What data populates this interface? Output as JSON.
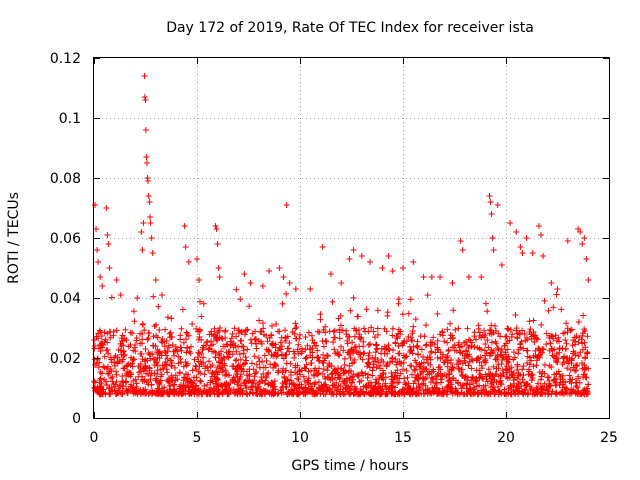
{
  "chart_data": {
    "type": "scatter",
    "title": "Day 172 of 2019, Rate Of TEC Index for receiver ista",
    "xlabel": "GPS time / hours",
    "ylabel": "ROTI / TECUs",
    "xlim": [
      0,
      25
    ],
    "ylim": [
      0,
      0.12
    ],
    "x_ticks": [
      0,
      5,
      10,
      15,
      20,
      25
    ],
    "x_tick_labels": [
      "0",
      "5",
      "10",
      "15",
      "20",
      "25"
    ],
    "y_ticks": [
      0,
      0.02,
      0.04,
      0.06,
      0.08,
      0.1,
      0.12
    ],
    "y_tick_labels": [
      "0",
      "0.02",
      "0.04",
      "0.06",
      "0.08",
      "0.1",
      "0.12"
    ],
    "grid": true,
    "marker": "+",
    "color": "#ff0000",
    "series": [
      {
        "name": "ROTI",
        "points": [
          [
            0.05,
            0.071
          ],
          [
            0.1,
            0.063
          ],
          [
            0.15,
            0.056
          ],
          [
            0.2,
            0.052
          ],
          [
            0.3,
            0.047
          ],
          [
            0.4,
            0.044
          ],
          [
            0.6,
            0.07
          ],
          [
            0.65,
            0.061
          ],
          [
            0.7,
            0.058
          ],
          [
            0.75,
            0.05
          ],
          [
            1.1,
            0.046
          ],
          [
            1.3,
            0.041
          ],
          [
            2.1,
            0.04
          ],
          [
            2.3,
            0.062
          ],
          [
            2.35,
            0.056
          ],
          [
            2.4,
            0.065
          ],
          [
            2.45,
            0.114
          ],
          [
            2.47,
            0.107
          ],
          [
            2.5,
            0.106
          ],
          [
            2.52,
            0.096
          ],
          [
            2.55,
            0.087
          ],
          [
            2.57,
            0.085
          ],
          [
            2.6,
            0.08
          ],
          [
            2.62,
            0.079
          ],
          [
            2.65,
            0.074
          ],
          [
            2.7,
            0.072
          ],
          [
            2.72,
            0.067
          ],
          [
            2.75,
            0.065
          ],
          [
            2.8,
            0.06
          ],
          [
            2.85,
            0.055
          ],
          [
            3.0,
            0.046
          ],
          [
            3.3,
            0.041
          ],
          [
            4.4,
            0.064
          ],
          [
            4.45,
            0.057
          ],
          [
            4.6,
            0.052
          ],
          [
            5.0,
            0.053
          ],
          [
            5.1,
            0.046
          ],
          [
            5.9,
            0.064
          ],
          [
            5.95,
            0.063
          ],
          [
            6.0,
            0.058
          ],
          [
            6.05,
            0.05
          ],
          [
            6.1,
            0.047
          ],
          [
            7.3,
            0.048
          ],
          [
            7.6,
            0.045
          ],
          [
            8.2,
            0.044
          ],
          [
            8.5,
            0.049
          ],
          [
            9.0,
            0.05
          ],
          [
            9.2,
            0.047
          ],
          [
            9.35,
            0.071
          ],
          [
            9.5,
            0.045
          ],
          [
            9.8,
            0.043
          ],
          [
            10.5,
            0.043
          ],
          [
            11.1,
            0.057
          ],
          [
            11.5,
            0.048
          ],
          [
            12.0,
            0.045
          ],
          [
            12.4,
            0.053
          ],
          [
            12.6,
            0.056
          ],
          [
            13.0,
            0.054
          ],
          [
            13.4,
            0.052
          ],
          [
            14.0,
            0.05
          ],
          [
            14.3,
            0.054
          ],
          [
            14.5,
            0.049
          ],
          [
            15.0,
            0.05
          ],
          [
            15.5,
            0.052
          ],
          [
            16.0,
            0.047
          ],
          [
            16.4,
            0.047
          ],
          [
            16.8,
            0.047
          ],
          [
            17.4,
            0.045
          ],
          [
            17.8,
            0.059
          ],
          [
            17.9,
            0.056
          ],
          [
            18.2,
            0.047
          ],
          [
            18.8,
            0.047
          ],
          [
            19.2,
            0.074
          ],
          [
            19.25,
            0.072
          ],
          [
            19.3,
            0.068
          ],
          [
            19.35,
            0.06
          ],
          [
            19.4,
            0.056
          ],
          [
            19.6,
            0.071
          ],
          [
            19.8,
            0.051
          ],
          [
            20.2,
            0.065
          ],
          [
            20.5,
            0.062
          ],
          [
            20.7,
            0.057
          ],
          [
            20.8,
            0.055
          ],
          [
            21.0,
            0.06
          ],
          [
            21.3,
            0.055
          ],
          [
            21.6,
            0.064
          ],
          [
            21.7,
            0.061
          ],
          [
            21.8,
            0.054
          ],
          [
            22.2,
            0.045
          ],
          [
            22.5,
            0.043
          ],
          [
            23.0,
            0.059
          ],
          [
            23.5,
            0.063
          ],
          [
            23.6,
            0.062
          ],
          [
            23.7,
            0.058
          ],
          [
            23.8,
            0.06
          ],
          [
            23.9,
            0.053
          ],
          [
            24.0,
            0.046
          ]
        ],
        "background_band": {
          "description": "dense cloud of points sampled throughout 0-24 h",
          "x_range": [
            0,
            24
          ],
          "typical_range": [
            0.004,
            0.03
          ]
        }
      }
    ]
  }
}
